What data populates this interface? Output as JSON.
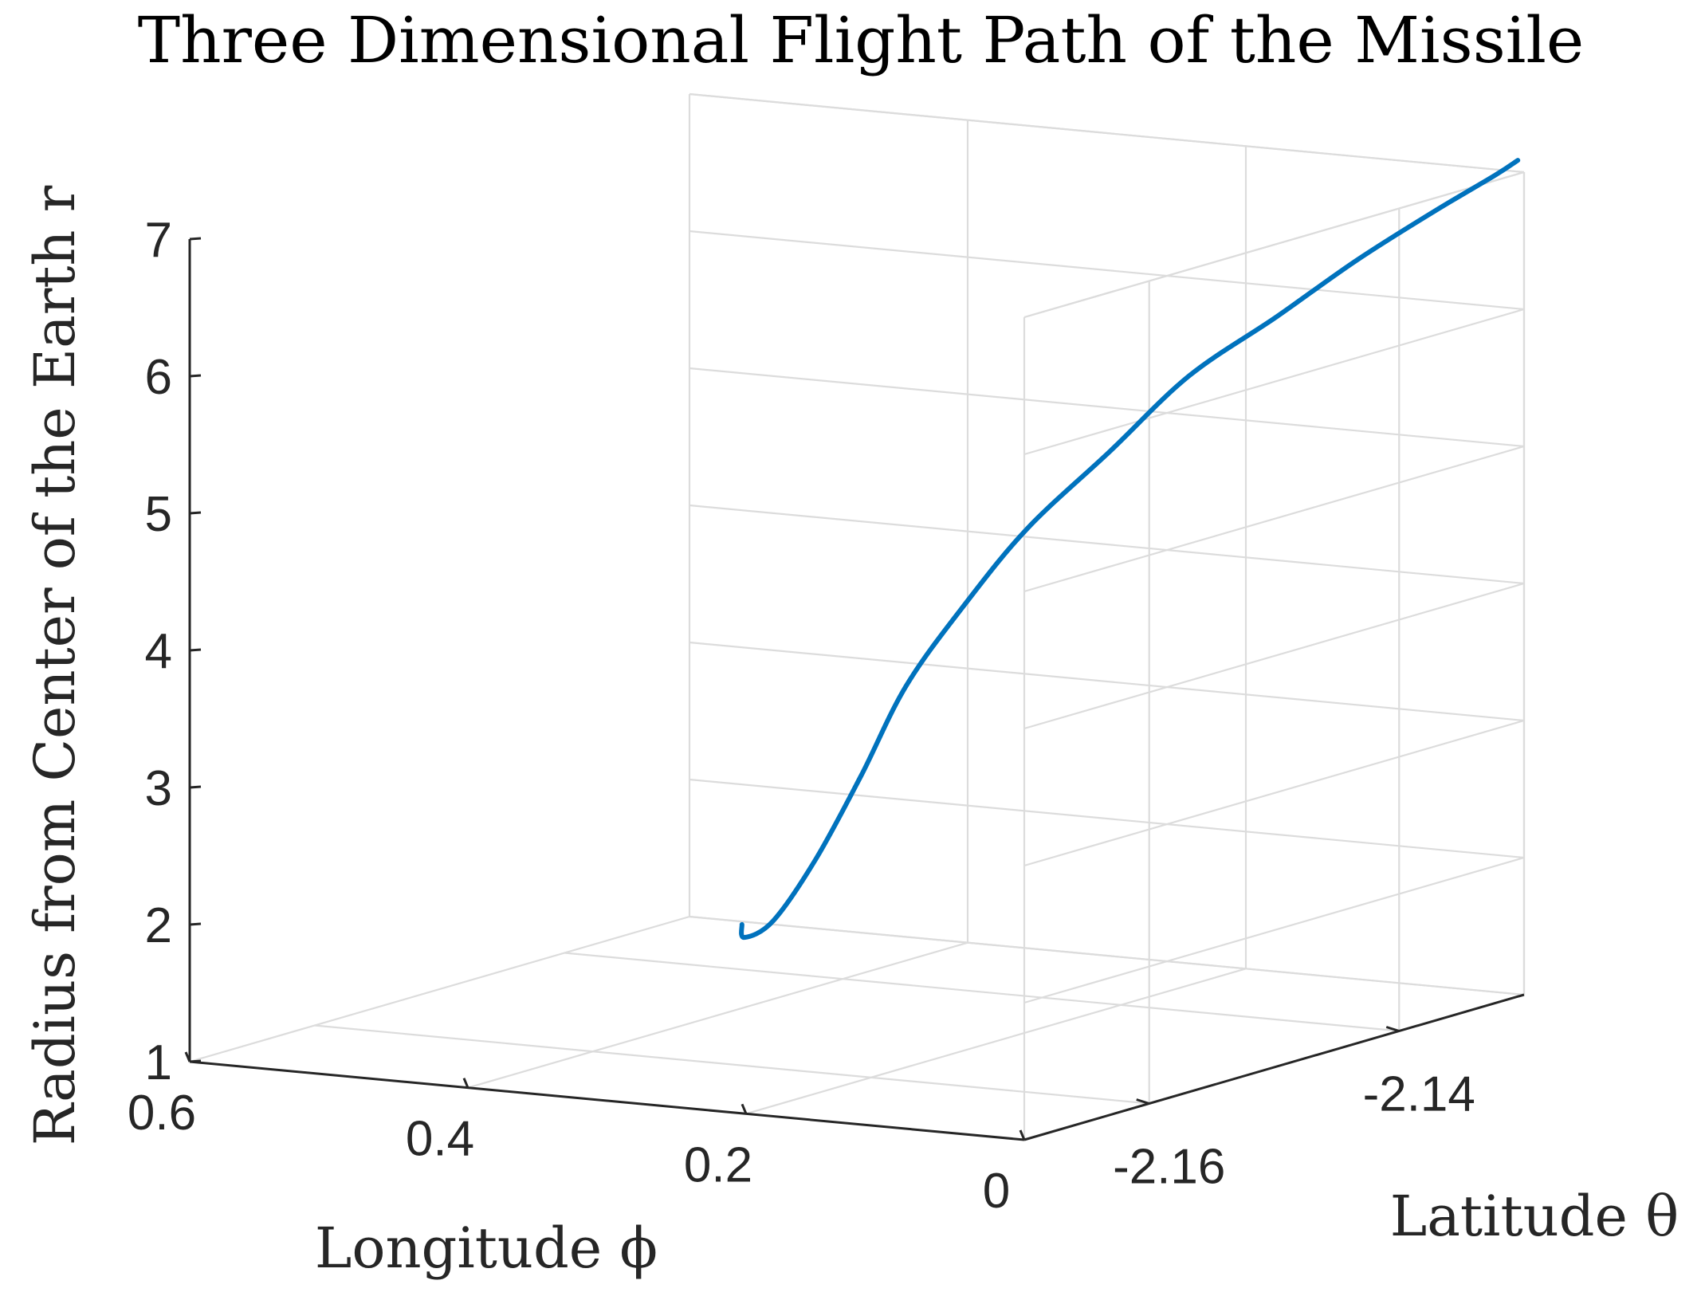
{
  "chart_data": {
    "type": "line",
    "title": "Three Dimensional Flight Path of the Missile",
    "xlabel": "Longitude ϕ",
    "ylabel": "Latitude θ",
    "zlabel": "Radius from Center of the Earth r",
    "x_ticks": [
      "0.6",
      "0.4",
      "0.2",
      "0"
    ],
    "x_tick_values": [
      0.6,
      0.4,
      0.2,
      0
    ],
    "y_ticks": [
      "-2.16",
      "-2.14"
    ],
    "y_tick_values": [
      -2.16,
      -2.14
    ],
    "z_ticks": [
      "1",
      "2",
      "3",
      "4",
      "5",
      "6",
      "7"
    ],
    "z_tick_values": [
      1,
      2,
      3,
      4,
      5,
      6,
      7
    ],
    "xlim": [
      0,
      0.6
    ],
    "ylim": [
      -2.17,
      -2.13
    ],
    "zlim": [
      1,
      7
    ],
    "grid": true,
    "series": [
      {
        "color": "#0072bd",
        "x": [
          0.3,
          0.3,
          0.29,
          0.28,
          0.27,
          0.26,
          0.24,
          0.22,
          0.19,
          0.16,
          0.12,
          0.08,
          0.04,
          0.01,
          0.0
        ],
        "y": [
          -2.1592,
          -2.159,
          -2.1578,
          -2.1555,
          -2.153,
          -2.1505,
          -2.148,
          -2.1452,
          -2.142,
          -2.139,
          -2.1365,
          -2.1345,
          -2.1327,
          -2.1312,
          -2.1305
        ],
        "z": [
          2.0,
          1.9,
          2.0,
          2.4,
          2.95,
          3.55,
          4.1,
          4.6,
          5.1,
          5.6,
          6.0,
          6.4,
          6.75,
          7.0,
          7.1
        ]
      }
    ]
  }
}
